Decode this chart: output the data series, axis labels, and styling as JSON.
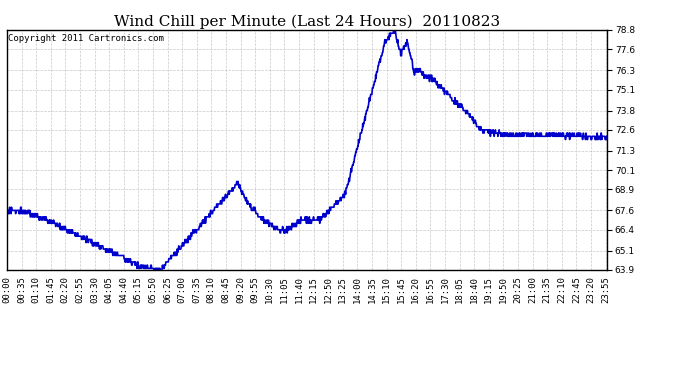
{
  "title": "Wind Chill per Minute (Last 24 Hours)  20110823",
  "copyright_text": "Copyright 2011 Cartronics.com",
  "line_color": "#0000cc",
  "background_color": "#ffffff",
  "grid_color": "#bbbbbb",
  "ylim": [
    63.9,
    78.8
  ],
  "yticks": [
    63.9,
    65.1,
    66.4,
    67.6,
    68.9,
    70.1,
    71.3,
    72.6,
    73.8,
    75.1,
    76.3,
    77.6,
    78.8
  ],
  "title_fontsize": 11,
  "tick_fontsize": 6.5,
  "copyright_fontsize": 6.5,
  "linewidth": 1.2
}
